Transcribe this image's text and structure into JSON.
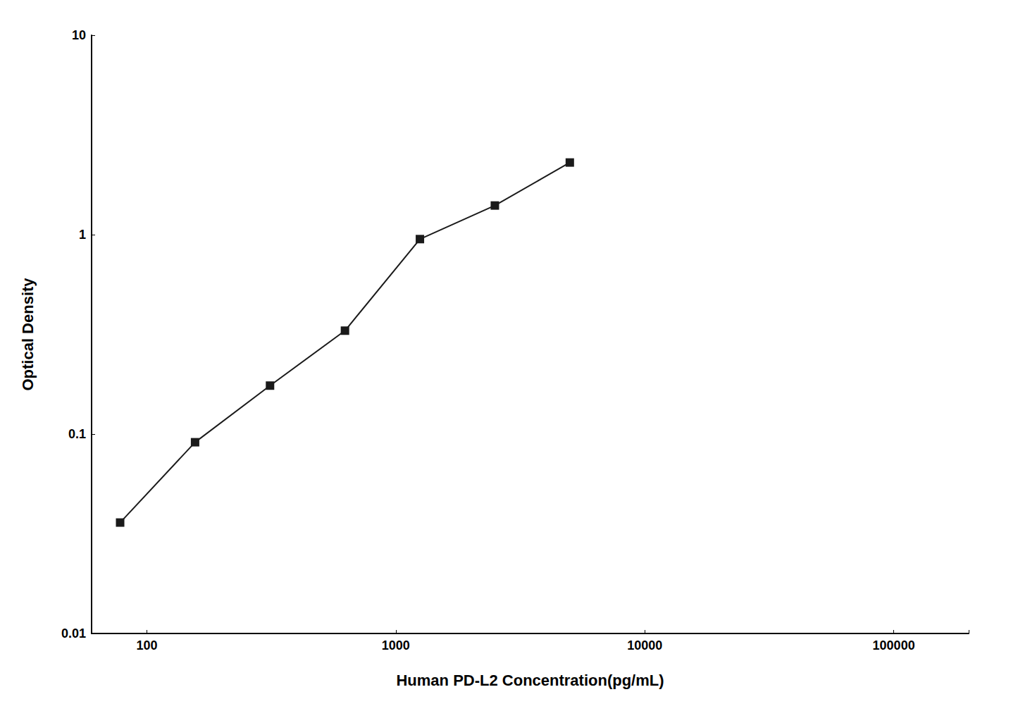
{
  "chart_data": {
    "type": "line",
    "xlabel": "Human PD-L2 Concentration(pg/mL)",
    "ylabel": "Optical Density",
    "x": [
      78.125,
      156.25,
      312.5,
      625,
      1250,
      2500,
      5000
    ],
    "values": [
      0.036,
      0.091,
      0.175,
      0.33,
      0.95,
      1.4,
      2.3
    ],
    "color": "#1a1a1a",
    "marker": "square",
    "log": true,
    "xlim": [
      60,
      200000
    ],
    "ylim": [
      0.01,
      10
    ],
    "xticks": [
      100,
      1000,
      10000,
      100000
    ],
    "yticks": [
      0.01,
      0.1,
      1,
      10
    ],
    "grid": false
  }
}
